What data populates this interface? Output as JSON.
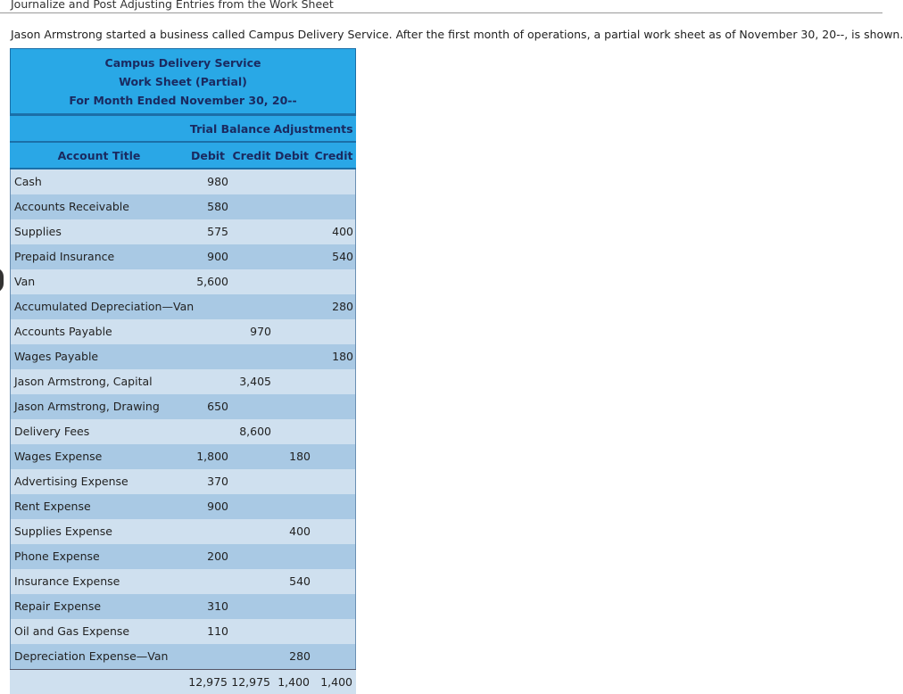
{
  "page": {
    "heading": "Journalize and Post Adjusting Entries from the Work Sheet",
    "intro": "Jason Armstrong started a business called Campus Delivery Service. After the first month of operations, a partial work sheet as of November 30, 20--, is shown."
  },
  "worksheet": {
    "title1": "Campus Delivery Service",
    "title2": "Work Sheet (Partial)",
    "title3": "For Month Ended November 30, 20--",
    "trial_balance_label": "Trial Balance",
    "adjustments_label": "Adjustments",
    "account_title_label": "Account Title",
    "debit_label": "Debit",
    "credit_label": "Credit",
    "colors": {
      "header": "#29a8e6",
      "row_light": "#cfe0ef",
      "row_dark": "#a9c9e4"
    },
    "rows": [
      {
        "account": "Cash",
        "tb_debit": "980",
        "tb_credit": "",
        "adj_debit": "",
        "adj_credit": ""
      },
      {
        "account": "Accounts Receivable",
        "tb_debit": "580",
        "tb_credit": "",
        "adj_debit": "",
        "adj_credit": ""
      },
      {
        "account": "Supplies",
        "tb_debit": "575",
        "tb_credit": "",
        "adj_debit": "",
        "adj_credit": "400"
      },
      {
        "account": "Prepaid Insurance",
        "tb_debit": "900",
        "tb_credit": "",
        "adj_debit": "",
        "adj_credit": "540"
      },
      {
        "account": "Van",
        "tb_debit": "5,600",
        "tb_credit": "",
        "adj_debit": "",
        "adj_credit": ""
      },
      {
        "account": "Accumulated Depreciation—Van",
        "tb_debit": "",
        "tb_credit": "",
        "adj_debit": "",
        "adj_credit": "280"
      },
      {
        "account": "Accounts Payable",
        "tb_debit": "",
        "tb_credit": "970",
        "adj_debit": "",
        "adj_credit": ""
      },
      {
        "account": "Wages Payable",
        "tb_debit": "",
        "tb_credit": "",
        "adj_debit": "",
        "adj_credit": "180"
      },
      {
        "account": "Jason Armstrong, Capital",
        "tb_debit": "",
        "tb_credit": "3,405",
        "adj_debit": "",
        "adj_credit": ""
      },
      {
        "account": "Jason Armstrong, Drawing",
        "tb_debit": "650",
        "tb_credit": "",
        "adj_debit": "",
        "adj_credit": ""
      },
      {
        "account": "Delivery Fees",
        "tb_debit": "",
        "tb_credit": "8,600",
        "adj_debit": "",
        "adj_credit": ""
      },
      {
        "account": "Wages Expense",
        "tb_debit": "1,800",
        "tb_credit": "",
        "adj_debit": "180",
        "adj_credit": ""
      },
      {
        "account": "Advertising Expense",
        "tb_debit": "370",
        "tb_credit": "",
        "adj_debit": "",
        "adj_credit": ""
      },
      {
        "account": "Rent Expense",
        "tb_debit": "900",
        "tb_credit": "",
        "adj_debit": "",
        "adj_credit": ""
      },
      {
        "account": "Supplies Expense",
        "tb_debit": "",
        "tb_credit": "",
        "adj_debit": "400",
        "adj_credit": ""
      },
      {
        "account": "Phone Expense",
        "tb_debit": "200",
        "tb_credit": "",
        "adj_debit": "",
        "adj_credit": ""
      },
      {
        "account": "Insurance Expense",
        "tb_debit": "",
        "tb_credit": "",
        "adj_debit": "540",
        "adj_credit": ""
      },
      {
        "account": "Repair Expense",
        "tb_debit": "310",
        "tb_credit": "",
        "adj_debit": "",
        "adj_credit": ""
      },
      {
        "account": "Oil and Gas Expense",
        "tb_debit": "110",
        "tb_credit": "",
        "adj_debit": "",
        "adj_credit": ""
      },
      {
        "account": "Depreciation Expense—Van",
        "tb_debit": "",
        "tb_credit": "",
        "adj_debit": "280",
        "adj_credit": ""
      }
    ],
    "totals": {
      "tb_debit": "12,975",
      "tb_credit": "12,975",
      "adj_debit": "1,400",
      "adj_credit": "1,400"
    }
  }
}
